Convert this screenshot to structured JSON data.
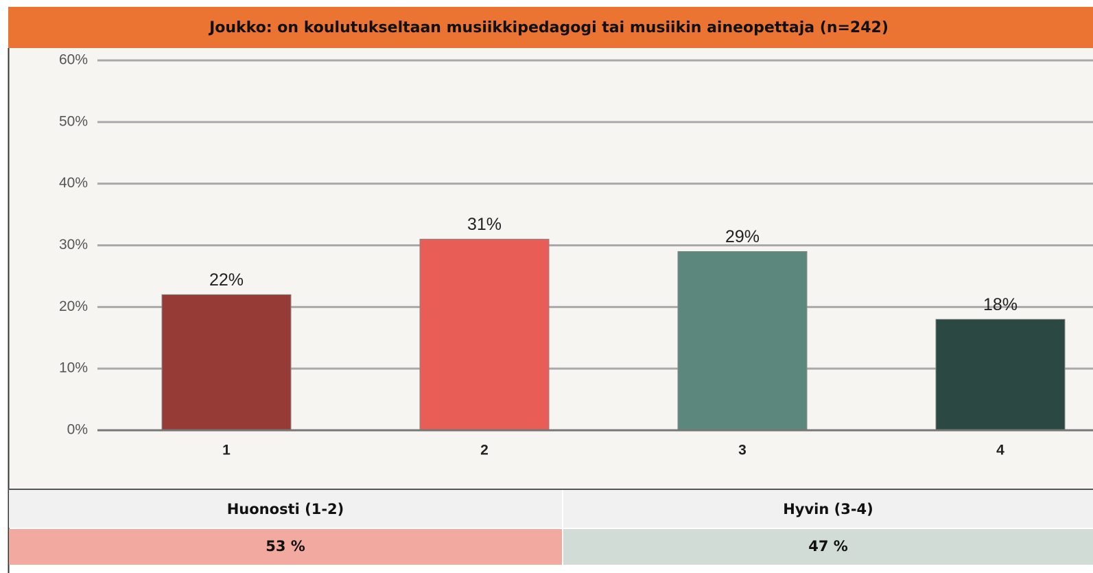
{
  "chart_data": {
    "type": "bar",
    "title": "Joukko: on koulutukseltaan musiikkipedagogi tai musiikin aineopettaja (n=242)",
    "categories": [
      "1",
      "2",
      "3",
      "4"
    ],
    "values": [
      22,
      31,
      29,
      18
    ],
    "value_labels": [
      "22%",
      "31%",
      "29%",
      "18%"
    ],
    "colors": [
      "#973b37",
      "#e95d57",
      "#5b877c",
      "#2b4842"
    ],
    "ylim": [
      0,
      60
    ],
    "yticks": [
      {
        "value": 0,
        "label": "0%"
      },
      {
        "value": 10,
        "label": "10%"
      },
      {
        "value": 20,
        "label": "20%"
      },
      {
        "value": 30,
        "label": "30%"
      },
      {
        "value": 40,
        "label": "40%"
      },
      {
        "value": 50,
        "label": "50%"
      },
      {
        "value": 60,
        "label": "60%"
      }
    ],
    "grid": true
  },
  "table": {
    "header": [
      "Huonosti (1-2)",
      "Hyvin (3-4)"
    ],
    "rows": [
      [
        "53 %",
        "47 %"
      ]
    ]
  }
}
